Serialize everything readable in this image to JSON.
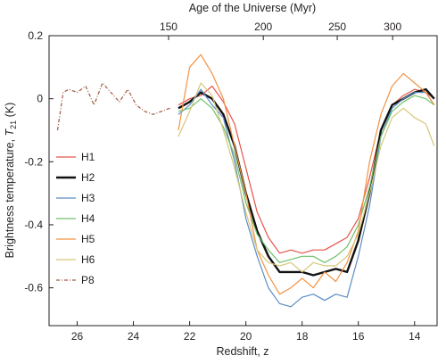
{
  "chart_data": {
    "type": "line",
    "xlabel": "Redshift, z",
    "ylabel": "Brightness temperature, T21 (K)",
    "ylabel_parts": {
      "main": "Brightness temperature, ",
      "symbol": "T",
      "sub": "21",
      "unit": " (K)"
    },
    "top_axis_label": "Age of the Universe (Myr)",
    "xlim": [
      27.0,
      13.2
    ],
    "ylim": [
      -0.72,
      0.2
    ],
    "x_reversed": true,
    "xticks": [
      26,
      24,
      22,
      20,
      18,
      16,
      14
    ],
    "yticks": [
      0.2,
      0,
      -0.2,
      -0.4,
      -0.6
    ],
    "top_ticks": [
      {
        "label": "150",
        "z": 22.75
      },
      {
        "label": "200",
        "z": 19.38
      },
      {
        "label": "250",
        "z": 16.75
      },
      {
        "label": "300",
        "z": 14.78
      }
    ],
    "legend_position": "left-center",
    "grid": false,
    "series": [
      {
        "name": "H1",
        "color": "#e8534a",
        "width": 1.2,
        "dash": "",
        "x": [
          22.4,
          22.0,
          21.6,
          21.2,
          20.8,
          20.4,
          20.0,
          19.6,
          19.2,
          18.8,
          18.4,
          18.0,
          17.6,
          17.2,
          16.8,
          16.4,
          16.0,
          15.6,
          15.2,
          14.8,
          14.4,
          14.0,
          13.6,
          13.3
        ],
        "y": [
          -0.02,
          0.0,
          0.01,
          0.04,
          -0.01,
          -0.08,
          -0.22,
          -0.36,
          -0.44,
          -0.49,
          -0.48,
          -0.49,
          -0.48,
          -0.48,
          -0.46,
          -0.44,
          -0.38,
          -0.25,
          -0.1,
          -0.02,
          0.01,
          0.03,
          0.02,
          0.0
        ]
      },
      {
        "name": "H2",
        "color": "#111111",
        "width": 2.4,
        "dash": "",
        "x": [
          22.4,
          22.0,
          21.6,
          21.2,
          20.8,
          20.4,
          20.0,
          19.6,
          19.2,
          18.8,
          18.4,
          18.0,
          17.6,
          17.2,
          16.8,
          16.4,
          16.0,
          15.6,
          15.2,
          14.8,
          14.4,
          14.0,
          13.6,
          13.3
        ],
        "y": [
          -0.03,
          -0.01,
          0.02,
          0.0,
          -0.05,
          -0.15,
          -0.3,
          -0.42,
          -0.5,
          -0.55,
          -0.55,
          -0.55,
          -0.56,
          -0.55,
          -0.54,
          -0.55,
          -0.45,
          -0.3,
          -0.1,
          -0.02,
          0.0,
          0.02,
          0.03,
          0.0
        ]
      },
      {
        "name": "H3",
        "color": "#5b8dc6",
        "width": 1.2,
        "dash": "",
        "x": [
          22.4,
          22.0,
          21.6,
          21.2,
          20.8,
          20.4,
          20.0,
          19.6,
          19.2,
          18.8,
          18.4,
          18.0,
          17.6,
          17.2,
          16.8,
          16.4,
          16.0,
          15.6,
          15.2,
          14.8,
          14.4,
          14.0,
          13.6,
          13.3
        ],
        "y": [
          -0.05,
          -0.02,
          0.03,
          -0.02,
          -0.06,
          -0.2,
          -0.38,
          -0.5,
          -0.6,
          -0.65,
          -0.66,
          -0.63,
          -0.62,
          -0.64,
          -0.62,
          -0.63,
          -0.5,
          -0.34,
          -0.12,
          -0.03,
          0.0,
          0.02,
          0.02,
          -0.02
        ]
      },
      {
        "name": "H4",
        "color": "#6fc16a",
        "width": 1.2,
        "dash": "",
        "x": [
          22.4,
          22.0,
          21.6,
          21.2,
          20.8,
          20.4,
          20.0,
          19.6,
          19.2,
          18.8,
          18.4,
          18.0,
          17.6,
          17.2,
          16.8,
          16.4,
          16.0,
          15.6,
          15.2,
          14.8,
          14.4,
          14.0,
          13.6,
          13.3
        ],
        "y": [
          -0.04,
          -0.03,
          0.0,
          -0.03,
          -0.09,
          -0.18,
          -0.33,
          -0.43,
          -0.48,
          -0.52,
          -0.51,
          -0.5,
          -0.5,
          -0.52,
          -0.5,
          -0.47,
          -0.4,
          -0.28,
          -0.12,
          -0.04,
          -0.01,
          0.01,
          0.0,
          -0.02
        ]
      },
      {
        "name": "H5",
        "color": "#f39243",
        "width": 1.2,
        "dash": "",
        "x": [
          22.4,
          22.0,
          21.6,
          21.2,
          20.8,
          20.4,
          20.0,
          19.6,
          19.2,
          18.8,
          18.4,
          18.0,
          17.6,
          17.2,
          16.8,
          16.4,
          16.0,
          15.6,
          15.2,
          14.8,
          14.4,
          14.0,
          13.6,
          13.3
        ],
        "y": [
          -0.1,
          0.1,
          0.14,
          0.08,
          0.0,
          -0.15,
          -0.3,
          -0.48,
          -0.56,
          -0.62,
          -0.6,
          -0.57,
          -0.6,
          -0.55,
          -0.58,
          -0.52,
          -0.42,
          -0.2,
          -0.05,
          0.04,
          0.08,
          0.05,
          0.02,
          -0.02
        ]
      },
      {
        "name": "H6",
        "color": "#d5c77a",
        "width": 1.2,
        "dash": "",
        "x": [
          22.4,
          22.0,
          21.6,
          21.2,
          20.8,
          20.4,
          20.0,
          19.6,
          19.2,
          18.8,
          18.4,
          18.0,
          17.6,
          17.2,
          16.8,
          16.4,
          16.0,
          15.6,
          15.2,
          14.8,
          14.4,
          14.0,
          13.6,
          13.3
        ],
        "y": [
          -0.12,
          -0.04,
          0.05,
          0.01,
          -0.1,
          -0.22,
          -0.36,
          -0.48,
          -0.52,
          -0.53,
          -0.52,
          -0.55,
          -0.52,
          -0.53,
          -0.53,
          -0.5,
          -0.43,
          -0.3,
          -0.15,
          -0.06,
          -0.03,
          -0.06,
          -0.08,
          -0.15
        ]
      },
      {
        "name": "P8",
        "color": "#a0583e",
        "width": 1.2,
        "dash": "4,2,1,2",
        "x": [
          26.7,
          26.5,
          26.3,
          26.0,
          25.7,
          25.4,
          25.1,
          24.8,
          24.5,
          24.2,
          23.9,
          23.6,
          23.3,
          23.0,
          22.7
        ],
        "y": [
          -0.1,
          0.02,
          0.03,
          0.02,
          0.04,
          -0.02,
          0.05,
          0.02,
          -0.01,
          0.03,
          -0.02,
          -0.04,
          -0.05,
          -0.04,
          -0.03
        ]
      }
    ]
  }
}
